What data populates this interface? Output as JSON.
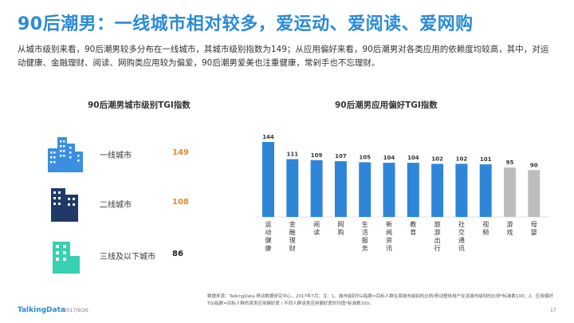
{
  "page": {
    "title": "90后潮男：一线城市相对较多，爱运动、爱阅读、爱网购",
    "intro": "从城市级别来看，90后潮男较多分布在一线城市，其城市级别指数为149；从应用偏好来看，90后潮男对各类应用的依赖度均较高，其中，对运动健康、金融理财、阅读、网购类应用较为偏爱，90后潮男爱美也注重健康，常剁手也不忘理财。"
  },
  "city_tier": {
    "title": "90后潮男城市级别TGI指数",
    "rows": [
      {
        "label": "一线城市",
        "value": "149",
        "icon": "skyscrapers-icon",
        "color": "#3b8fe0",
        "value_color": "#e08a2a"
      },
      {
        "label": "二线城市",
        "value": "108",
        "icon": "office-buildings-icon",
        "color": "#1f3a66",
        "value_color": "#e08a2a"
      },
      {
        "label": "三线及以下城市",
        "value": "86",
        "icon": "low-building-icon",
        "color": "#37d0b0",
        "value_color": "#222222"
      }
    ]
  },
  "chart_data": {
    "type": "bar",
    "title": "90后潮男应用偏好TGI指数",
    "categories": [
      "运动健康",
      "金融理财",
      "阅读",
      "网购",
      "生活服务",
      "新闻资讯",
      "教育",
      "旅游出行",
      "社交通讯",
      "视频",
      "游戏",
      "母婴"
    ],
    "values": [
      144,
      111,
      109,
      107,
      105,
      104,
      104,
      102,
      102,
      101,
      95,
      90
    ],
    "colors": [
      "#2f86d8",
      "#2f86d8",
      "#2f86d8",
      "#2f86d8",
      "#2f86d8",
      "#2f86d8",
      "#2f86d8",
      "#2f86d8",
      "#2f86d8",
      "#2f86d8",
      "#bdbdbd",
      "#bdbdbd"
    ],
    "ylim": [
      0,
      150
    ],
    "grid": false,
    "legend": "none"
  },
  "footer": {
    "source_note": "数据来源：TalkingData 移动数据研究中心，2017年7月；注：1、城市级别TGI指数=目标人群在某城市级别的比例/移动整体用户在该城市级别的比例*标准数100；2、应用偏好TGI指数=目标人群的某类应用偏好度 / 不同人群该类应用偏好度的均值*标准数100。",
    "brand": "TalkingData",
    "date": "2017/9/26",
    "page_number": "17"
  }
}
